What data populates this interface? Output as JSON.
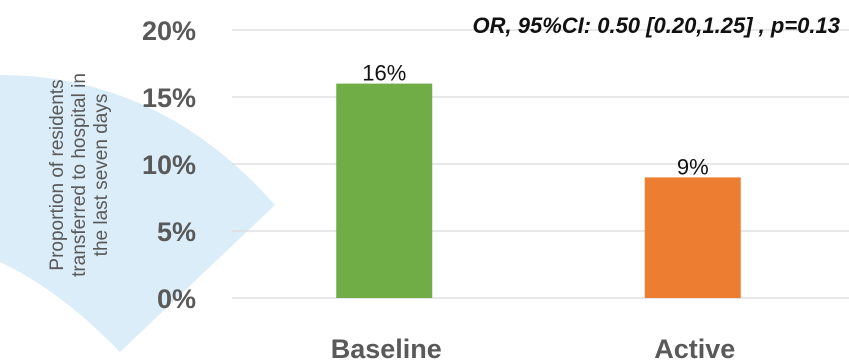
{
  "colors": {
    "baseline_bar": "#70ad47",
    "active_bar": "#ed7d31",
    "decor_shape": "#daedf8",
    "grid": "#d9d9d9",
    "axis_text": "#595959"
  },
  "chart_data": {
    "type": "bar",
    "title": "",
    "annotation": "OR, 95%CI: 0.50 [0.20,1.25] , p=0.13",
    "categories": [
      "Baseline",
      "Active"
    ],
    "values": [
      16,
      9
    ],
    "data_labels": [
      "16%",
      "9%"
    ],
    "bar_colors": [
      "#70ad47",
      "#ed7d31"
    ],
    "ylabel_lines": [
      "Proportion of residents",
      "transferred to hospital in",
      "the last seven days"
    ],
    "xlabel": "",
    "ylim": [
      0,
      20
    ],
    "yticks": [
      0,
      5,
      10,
      15,
      20
    ],
    "ytick_labels": [
      "0%",
      "5%",
      "10%",
      "15%",
      "20%"
    ],
    "grid": true,
    "legend": "none"
  }
}
